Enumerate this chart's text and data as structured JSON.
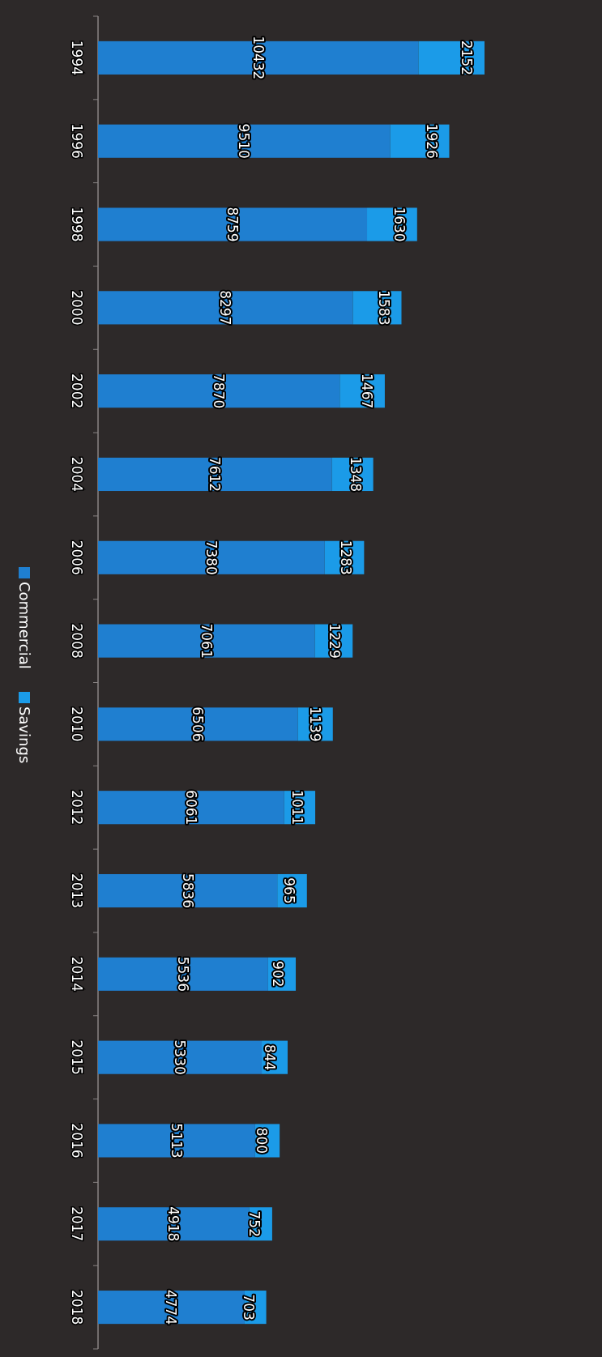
{
  "chart_data": {
    "type": "bar",
    "stacked": true,
    "categories": [
      "1994",
      "1996",
      "1998",
      "2000",
      "2002",
      "2004",
      "2006",
      "2008",
      "2010",
      "2012",
      "2013",
      "2014",
      "2015",
      "2016",
      "2017",
      "2018"
    ],
    "series": [
      {
        "name": "Commercial",
        "color": "#1f7fd0",
        "values": [
          10432,
          9510,
          8759,
          8297,
          7870,
          7612,
          7380,
          7061,
          6506,
          6061,
          5836,
          5536,
          5330,
          5113,
          4918,
          4774
        ]
      },
      {
        "name": "Savings",
        "color": "#1b9be8",
        "values": [
          2152,
          1926,
          1630,
          1583,
          1467,
          1348,
          1283,
          1229,
          1139,
          1011,
          965,
          902,
          844,
          800,
          752,
          703
        ]
      }
    ],
    "orientation": "horizontal",
    "legend": "left",
    "data_labels": true,
    "tick_labels": "y"
  }
}
